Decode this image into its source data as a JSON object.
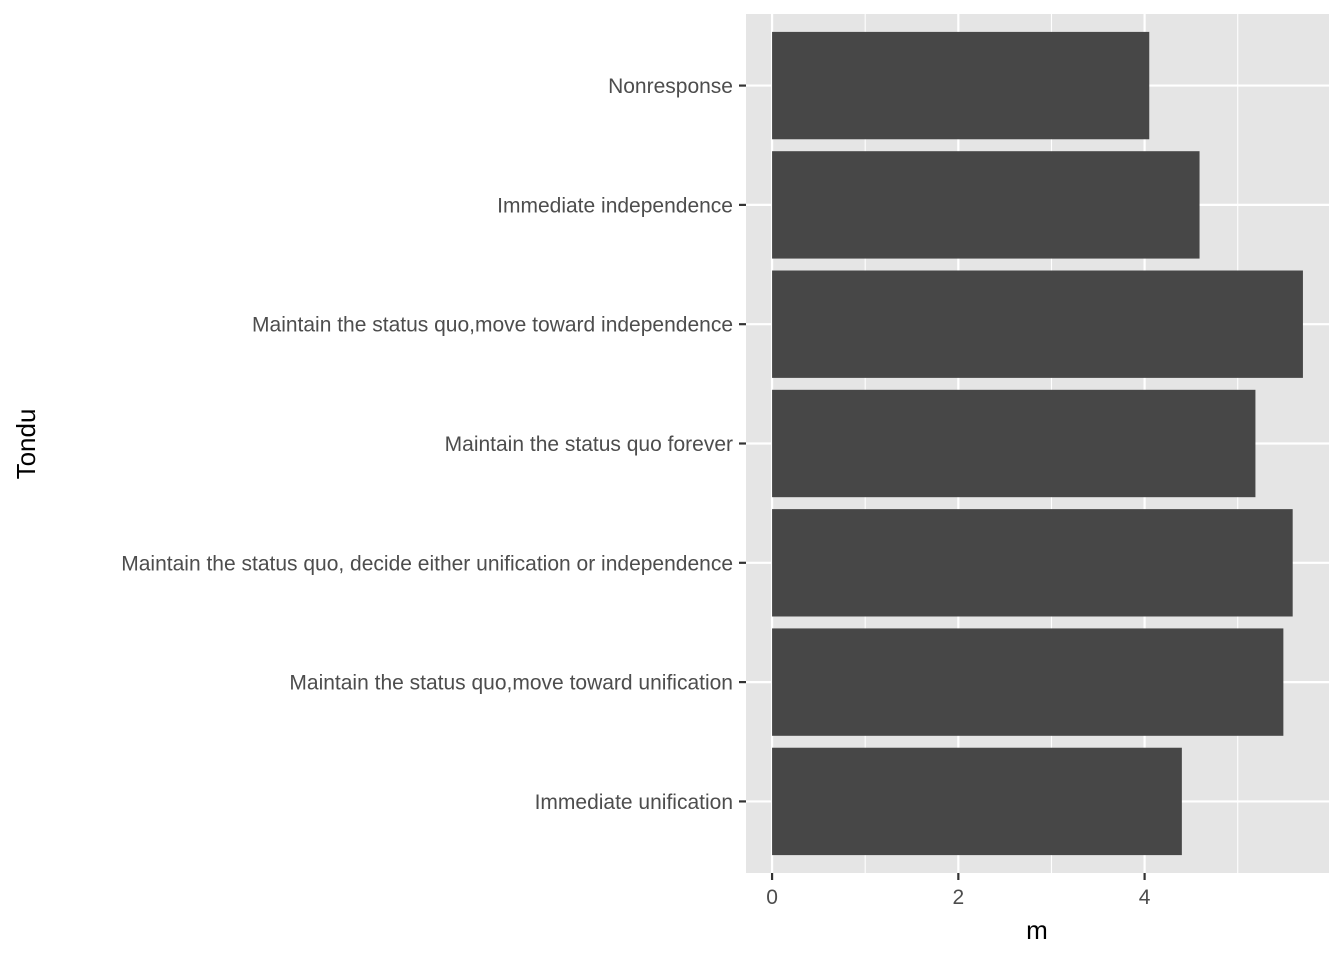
{
  "chart_data": {
    "type": "bar",
    "orientation": "horizontal",
    "title": "",
    "xlabel": "m",
    "ylabel": "Tondu",
    "categories": [
      "Immediate unification",
      "Maintain the status quo,move toward unification",
      "Maintain the status quo, decide either unification or independence",
      "Maintain the status quo forever",
      "Maintain the status quo,move toward independence",
      "Immediate independence",
      "Nonresponse"
    ],
    "values": [
      4.4,
      5.49,
      5.59,
      5.19,
      5.7,
      4.59,
      4.05
    ],
    "xlim": [
      -0.28,
      5.98
    ],
    "xticks": [
      0,
      2,
      4
    ],
    "xtick_labels": [
      "0",
      "2",
      "4"
    ],
    "grid": true,
    "legend": "none",
    "colors": {
      "bar": "#474747",
      "panel": "#e5e5e5",
      "grid": "#ffffff",
      "tick_text": "#4d4d4d",
      "tick_mark": "#333333",
      "axis_title": "#000000"
    }
  }
}
